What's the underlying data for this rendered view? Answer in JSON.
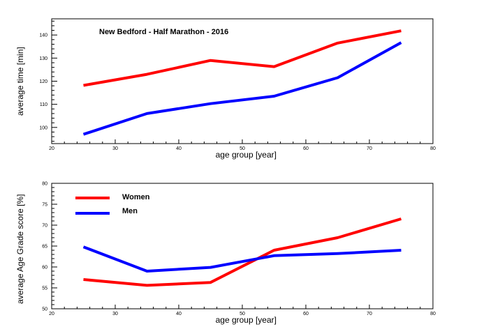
{
  "chart_data": [
    {
      "type": "line",
      "title": "New Bedford - Half Marathon - 2016",
      "xlabel": "age group [year]",
      "ylabel": "average time [min]",
      "xlim": [
        20,
        80
      ],
      "ylim": [
        93,
        147
      ],
      "xticks": [
        20,
        30,
        40,
        50,
        60,
        70,
        80
      ],
      "yticks": [
        100,
        110,
        120,
        130,
        140
      ],
      "grid": false,
      "series": [
        {
          "color": "#ff0000",
          "x": [
            25,
            35,
            45,
            55,
            65,
            75
          ],
          "y": [
            118.2,
            123,
            129,
            126.3,
            136.5,
            141.8
          ]
        },
        {
          "color": "#0000ff",
          "x": [
            25,
            35,
            45,
            55,
            65,
            75
          ],
          "y": [
            97,
            106,
            110.3,
            113.5,
            121.5,
            136.7
          ]
        }
      ]
    },
    {
      "type": "line",
      "title": "",
      "xlabel": "age group [year]",
      "ylabel": "average Age Grade score [%]",
      "xlim": [
        20,
        80
      ],
      "ylim": [
        50,
        80
      ],
      "xticks": [
        20,
        30,
        40,
        50,
        60,
        70,
        80
      ],
      "yticks": [
        50,
        55,
        60,
        65,
        70,
        75,
        80
      ],
      "grid": false,
      "legend_position": "top-left",
      "series": [
        {
          "name": "Women",
          "color": "#ff0000",
          "x": [
            25,
            35,
            45,
            55,
            65,
            75
          ],
          "y": [
            57,
            55.6,
            56.3,
            64,
            67,
            71.5
          ]
        },
        {
          "name": "Men",
          "color": "#0000ff",
          "x": [
            25,
            35,
            45,
            55,
            65,
            75
          ],
          "y": [
            64.8,
            59,
            59.9,
            62.7,
            63.2,
            64
          ]
        }
      ]
    }
  ]
}
